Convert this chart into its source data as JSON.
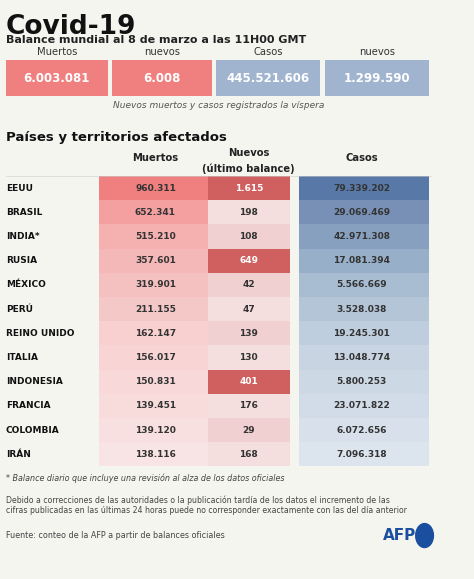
{
  "title": "Covid-19",
  "subtitle": "Balance mundial al 8 de marzo a las 11H00 GMT",
  "summary_labels": [
    "Muertos",
    "nuevos",
    "Casos",
    "nuevos"
  ],
  "summary_values": [
    "6.003.081",
    "6.008",
    "445.521.606",
    "1.299.590"
  ],
  "summary_colors": [
    "#f08080",
    "#f08080",
    "#a0b4d0",
    "#a0b4d0"
  ],
  "summary_note": "Nuevos muertos y casos registrados la víspera",
  "section_title": "Países y territorios afectados",
  "countries": [
    "EEUU",
    "BRASIL",
    "INDIA*",
    "RUSIA",
    "MÉXICO",
    "PERÚ",
    "REINO UNIDO",
    "ITALIA",
    "INDONESIA",
    "FRANCIA",
    "COLOMBIA",
    "IRÁN"
  ],
  "muertos": [
    "960.311",
    "652.341",
    "515.210",
    "357.601",
    "319.901",
    "211.155",
    "162.147",
    "156.017",
    "150.831",
    "139.451",
    "139.120",
    "138.116"
  ],
  "nuevos": [
    "1.615",
    "198",
    "108",
    "649",
    "42",
    "47",
    "139",
    "130",
    "401",
    "176",
    "29",
    "168"
  ],
  "casos": [
    "79.339.202",
    "29.069.469",
    "42.971.308",
    "17.081.394",
    "5.566.669",
    "3.528.038",
    "19.245.301",
    "13.048.774",
    "5.800.253",
    "23.071.822",
    "6.072.656",
    "7.096.318"
  ],
  "nuevos_highlight": [
    true,
    false,
    false,
    true,
    false,
    false,
    false,
    false,
    true,
    false,
    false,
    false
  ],
  "muertos_row_colors": [
    "#f08080",
    "#f5a0a0",
    "#f5b0b0",
    "#f5b8b8",
    "#f5c0c0",
    "#f5c8c8",
    "#f8d0d0",
    "#f8d4d4",
    "#f8d8d8",
    "#f8dcdc",
    "#f8e0e0",
    "#f8e4e4"
  ],
  "nuevos_normal_colors": [
    "#f0d0d0",
    "#f5dede",
    "#f0d0d0",
    "#f5dede",
    "#f0d0d0",
    "#f5dede",
    "#f0d0d0",
    "#f5dede",
    "#f0d0d0",
    "#f5dede",
    "#f0d0d0",
    "#f5dede"
  ],
  "nuevos_highlight_color": "#d06060",
  "casos_row_colors": [
    "#5878a8",
    "#7890b5",
    "#88a0bf",
    "#98afc9",
    "#a8bcd2",
    "#b5c5d8",
    "#bfcede",
    "#c8d4e2",
    "#cdd8e5",
    "#d2dce8",
    "#d7e0eb",
    "#dce4ee"
  ],
  "footnote1": "* Balance diario que incluye una revisión al alza de los datos oficiales",
  "footnote2": "Debido a correcciones de las autoridades o la publicación tardía de los datos el incremento de las\ncifras publicadas en las últimas 24 horas puede no corresponder exactamente con las del día anterior",
  "source": "Fuente: conteo de la AFP a partir de balances oficiales",
  "bg_color": "#f5f5f0",
  "afp_color": "#1a4fa0"
}
